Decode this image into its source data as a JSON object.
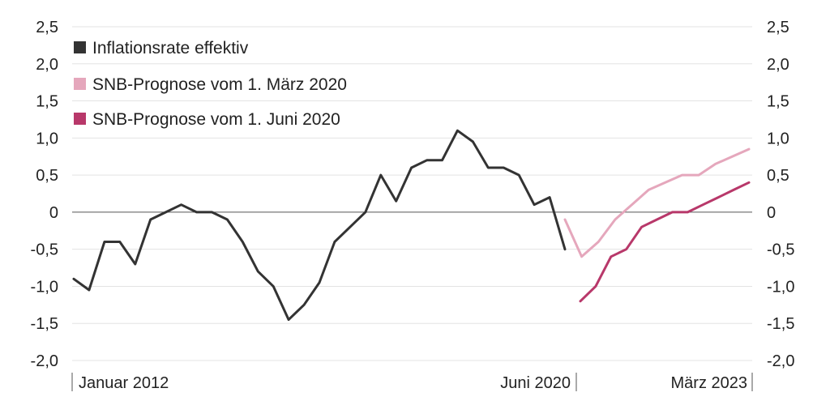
{
  "chart_data": {
    "type": "line",
    "x_start": "Januar 2012",
    "x_tick_labels": [
      "Januar 2012",
      "Juni 2020",
      "März 2023"
    ],
    "y_tick_labels": [
      "2,5",
      "2,0",
      "1,5",
      "1,0",
      "0,5",
      "0",
      "-0,5",
      "-1,0",
      "-1,5",
      "-2,0"
    ],
    "ylim": [
      -2.0,
      2.5
    ],
    "grid": true,
    "zero_line": true,
    "legend_position": "top-left",
    "series": [
      {
        "name": "Inflationsrate effektiv",
        "color": "#333333",
        "period": "Januar 2012 – Juni 2020",
        "values": [
          -0.9,
          -1.05,
          -0.4,
          -0.4,
          -0.7,
          -0.1,
          0.0,
          0.1,
          0.0,
          0.0,
          -0.1,
          -0.4,
          -0.8,
          -1.0,
          -1.45,
          -1.25,
          -0.95,
          -0.4,
          -0.2,
          0.0,
          0.5,
          0.15,
          0.6,
          0.7,
          0.7,
          1.1,
          0.95,
          0.6,
          0.6,
          0.5,
          0.1,
          0.2,
          -0.5
        ]
      },
      {
        "name": "SNB-Prognose vom 1. März 2020",
        "color": "#e5a7bc",
        "period": "bis März 2023",
        "values": [
          -0.1,
          -0.6,
          -0.4,
          -0.1,
          0.1,
          0.3,
          0.4,
          0.5,
          0.5,
          0.65,
          0.75,
          0.85
        ]
      },
      {
        "name": "SNB-Prognose vom 1. Juni 2020",
        "color": "#b8386a",
        "period": "bis März 2023",
        "values": [
          -1.2,
          -1.0,
          -0.6,
          -0.5,
          -0.2,
          -0.1,
          0.0,
          0.0,
          0.1,
          0.2,
          0.3,
          0.4
        ]
      }
    ]
  }
}
